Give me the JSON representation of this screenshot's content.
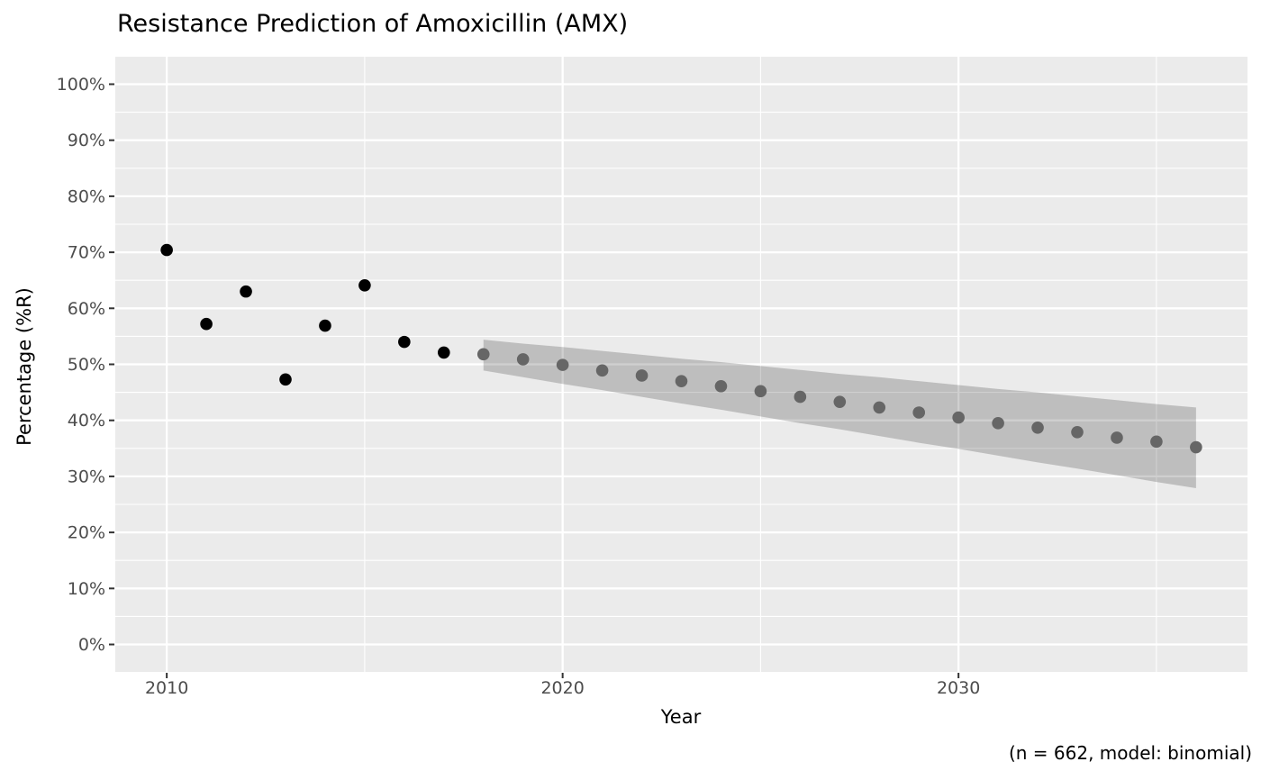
{
  "chart_data": {
    "type": "scatter",
    "title": "Resistance Prediction of Amoxicillin (AMX)",
    "xlabel": "Year",
    "ylabel": "Percentage (%R)",
    "caption": "(n = 662, model: binomial)",
    "grid": true,
    "legend_position": "none",
    "x_axis": {
      "ticks": [
        2010,
        2020,
        2030
      ],
      "minor_ticks": [
        2015,
        2025,
        2035
      ],
      "range": [
        2008.7,
        2037.3
      ]
    },
    "y_axis": {
      "ticks": [
        0,
        10,
        20,
        30,
        40,
        50,
        60,
        70,
        80,
        90,
        100
      ],
      "tick_labels": [
        "0%",
        "10%",
        "20%",
        "30%",
        "40%",
        "50%",
        "60%",
        "70%",
        "80%",
        "90%",
        "100%"
      ],
      "minor_ticks": [
        5,
        15,
        25,
        35,
        45,
        55,
        65,
        75,
        85,
        95
      ],
      "range": [
        -4.9,
        104.9
      ]
    },
    "series": [
      {
        "name": "observed",
        "marker": "circle",
        "color": "#000000",
        "x": [
          2010,
          2011,
          2012,
          2013,
          2014,
          2015,
          2016,
          2017
        ],
        "y": [
          70.4,
          57.2,
          63.0,
          47.3,
          56.9,
          64.1,
          54.0,
          52.1
        ]
      },
      {
        "name": "predicted",
        "marker": "circle",
        "color": "#666666",
        "x": [
          2018,
          2019,
          2020,
          2021,
          2022,
          2023,
          2024,
          2025,
          2026,
          2027,
          2028,
          2029,
          2030,
          2031,
          2032,
          2033,
          2034,
          2035,
          2036
        ],
        "y": [
          51.8,
          50.9,
          49.9,
          48.9,
          48.0,
          47.0,
          46.1,
          45.2,
          44.2,
          43.3,
          42.3,
          41.4,
          40.5,
          39.5,
          38.7,
          37.9,
          36.9,
          36.2,
          35.2
        ]
      }
    ],
    "confidence_ribbon": {
      "name": "prediction-confidence-interval",
      "color": "rgba(0,0,0,0.19)",
      "x": [
        2018,
        2019,
        2020,
        2021,
        2022,
        2023,
        2024,
        2025,
        2026,
        2027,
        2028,
        2029,
        2030,
        2031,
        2032,
        2033,
        2034,
        2035,
        2036
      ],
      "upper": [
        54.4,
        53.7,
        53.1,
        52.4,
        51.7,
        51.0,
        50.4,
        49.7,
        49.0,
        48.3,
        47.7,
        47.0,
        46.3,
        45.6,
        45.0,
        44.3,
        43.6,
        42.9,
        42.3
      ],
      "lower": [
        48.9,
        47.7,
        46.5,
        45.4,
        44.2,
        43.0,
        41.9,
        40.7,
        39.5,
        38.4,
        37.2,
        36.0,
        34.9,
        33.7,
        32.5,
        31.4,
        30.2,
        29.0,
        27.9
      ]
    },
    "colors": {
      "panel_background": "#EBEBEB",
      "gridline_major": "#FFFFFF",
      "gridline_minor": "#FFFFFF",
      "tick_mark": "#333333",
      "tick_label": "#4D4D4D",
      "title": "#000000"
    }
  }
}
